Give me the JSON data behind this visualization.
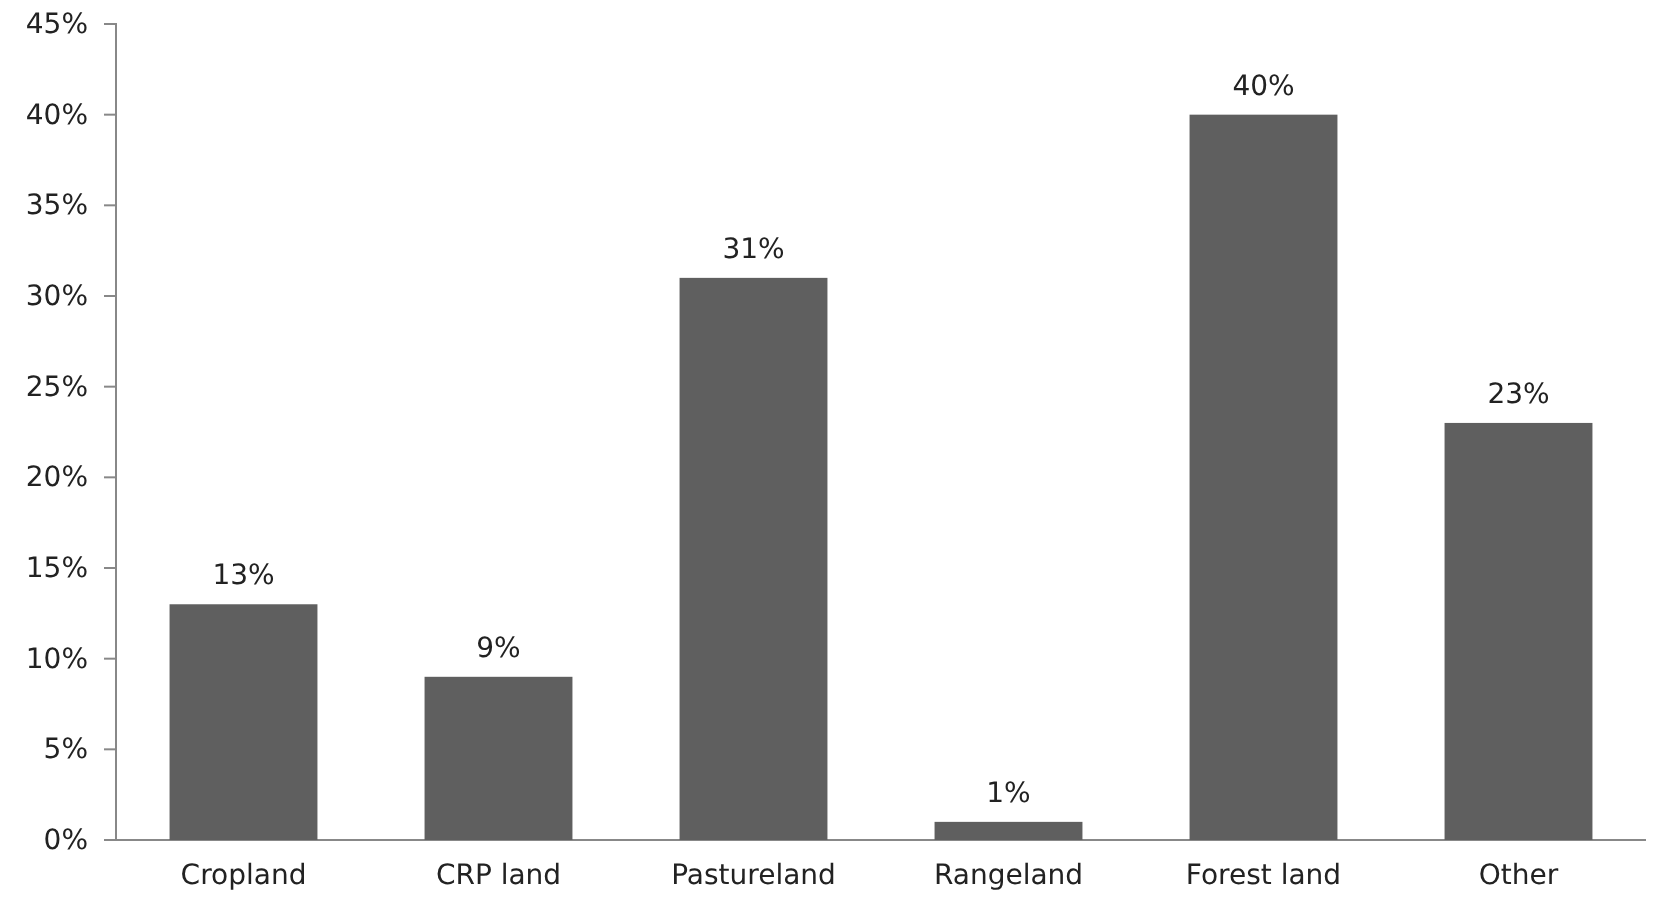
{
  "chart_data": {
    "type": "bar",
    "categories": [
      "Cropland",
      "CRP land",
      "Pastureland",
      "Rangeland",
      "Forest land",
      "Other"
    ],
    "values": [
      13,
      9,
      31,
      1,
      40,
      23
    ],
    "color": "#5f5f5f",
    "data_labels": true,
    "value_labels": [
      "13%",
      "9%",
      "31%",
      "1%",
      "40%",
      "23%"
    ],
    "ylim": [
      0,
      45
    ],
    "yticks": [
      {
        "value": 0,
        "label": "0%"
      },
      {
        "value": 5,
        "label": "5%"
      },
      {
        "value": 10,
        "label": "10%"
      },
      {
        "value": 15,
        "label": "15%"
      },
      {
        "value": 20,
        "label": "20%"
      },
      {
        "value": 25,
        "label": "25%"
      },
      {
        "value": 30,
        "label": "30%"
      },
      {
        "value": 35,
        "label": "35%"
      },
      {
        "value": 40,
        "label": "40%"
      },
      {
        "value": 45,
        "label": "45%"
      }
    ],
    "grid": false
  }
}
